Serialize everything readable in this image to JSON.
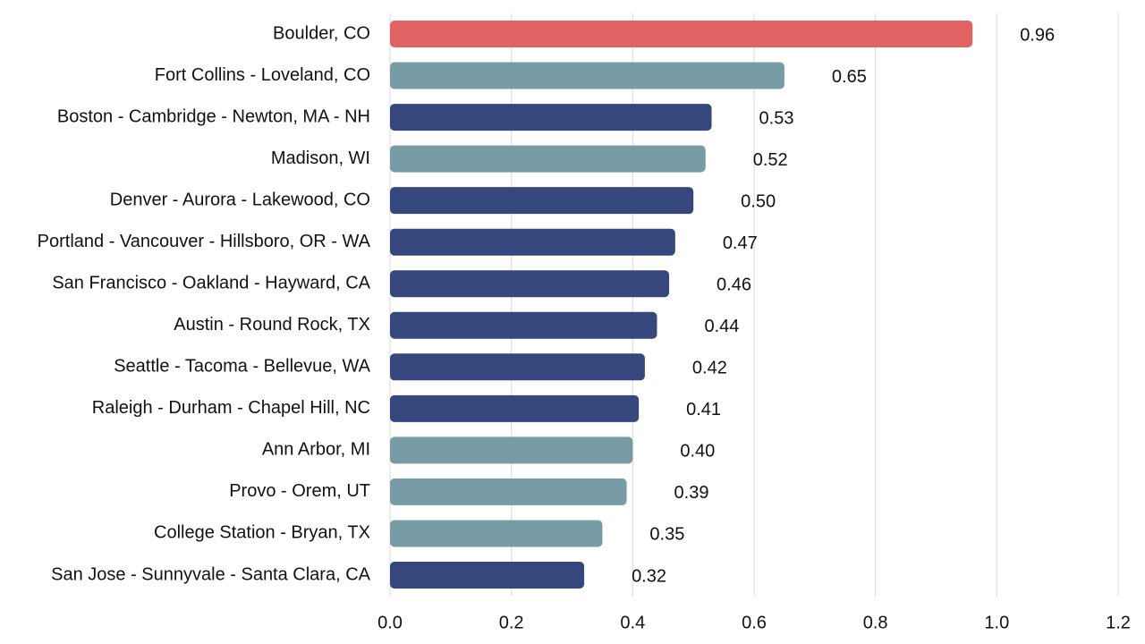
{
  "chart_data": {
    "type": "bar",
    "orientation": "horizontal",
    "categories": [
      "Boulder, CO",
      "Fort Collins - Loveland, CO",
      "Boston - Cambridge - Newton, MA - NH",
      "Madison, WI",
      "Denver - Aurora - Lakewood, CO",
      "Portland - Vancouver - Hillsboro, OR - WA",
      "San Francisco - Oakland - Hayward, CA",
      "Austin - Round Rock, TX",
      "Seattle - Tacoma - Bellevue, WA",
      "Raleigh - Durham - Chapel Hill, NC",
      "Ann Arbor, MI",
      "Provo - Orem, UT",
      "College Station - Bryan, TX",
      "San Jose - Sunnyvale - Santa Clara, CA"
    ],
    "values": [
      0.96,
      0.65,
      0.53,
      0.52,
      0.5,
      0.47,
      0.46,
      0.44,
      0.42,
      0.41,
      0.4,
      0.39,
      0.35,
      0.32
    ],
    "value_labels": [
      "0.96",
      "0.65",
      "0.53",
      "0.52",
      "0.50",
      "0.47",
      "0.46",
      "0.44",
      "0.42",
      "0.41",
      "0.40",
      "0.39",
      "0.35",
      "0.32"
    ],
    "colors": [
      "#e06262",
      "#789ca6",
      "#36477d",
      "#789ca6",
      "#36477d",
      "#36477d",
      "#36477d",
      "#36477d",
      "#36477d",
      "#36477d",
      "#789ca6",
      "#789ca6",
      "#789ca6",
      "#36477d"
    ],
    "xlim": [
      0,
      1.2
    ],
    "xticks": [
      {
        "value": 0,
        "label": "0.0"
      },
      0.2,
      0.4,
      0.6,
      0.8,
      {
        "value": 1,
        "label": "1.0"
      },
      1.2
    ],
    "grid": true
  }
}
